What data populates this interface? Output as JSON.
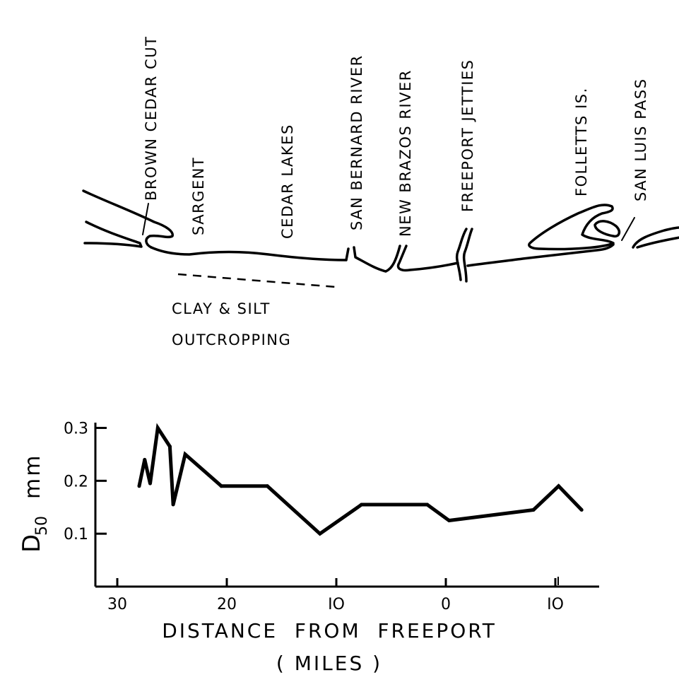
{
  "map": {
    "places": [
      {
        "id": "brown-cedar-cut",
        "label": "BROWN CEDAR CUT"
      },
      {
        "id": "sargent",
        "label": "SARGENT"
      },
      {
        "id": "cedar-lakes",
        "label": "CEDAR LAKES"
      },
      {
        "id": "san-bernard-river",
        "label": "SAN BERNARD RIVER"
      },
      {
        "id": "new-brazos-river",
        "label": "NEW BRAZOS RIVER"
      },
      {
        "id": "freeport-jetties",
        "label": "FREEPORT JETTIES"
      },
      {
        "id": "folletts-is",
        "label": "FOLLETTS IS."
      },
      {
        "id": "san-luis-pass",
        "label": "SAN LUIS PASS"
      }
    ],
    "annotation": {
      "line1": "CLAY & SILT",
      "line2": "OUTCROPPING"
    }
  },
  "chart_data": {
    "type": "line",
    "ylabel_main": "D",
    "ylabel_sub": "50",
    "ylabel_unit": "mm",
    "xlabel_line1": "DISTANCE  FROM  FREEPORT",
    "xlabel_line2": "( MILES )",
    "xlim": [
      32,
      -14
    ],
    "ylim": [
      0,
      0.31
    ],
    "x_ticks": [
      30,
      20,
      10,
      0,
      -10
    ],
    "x_tick_labels": [
      "30",
      "20",
      "IO",
      "0",
      "IO"
    ],
    "y_ticks": [
      0.1,
      0.2,
      0.3
    ],
    "y_tick_labels": [
      "0.1",
      "0.2",
      "0.3"
    ],
    "grid": false,
    "series": [
      {
        "x": [
          28,
          27.5,
          27,
          26.3,
          25.2,
          24.9,
          23.8,
          20.5,
          16.3,
          11.5,
          7.7,
          1.7,
          -0.3,
          -8,
          -10.3,
          -12.4
        ],
        "y": [
          0.19,
          0.24,
          0.195,
          0.3,
          0.265,
          0.155,
          0.25,
          0.19,
          0.19,
          0.1,
          0.155,
          0.155,
          0.125,
          0.145,
          0.19,
          0.145
        ]
      }
    ],
    "color": "#000000"
  }
}
